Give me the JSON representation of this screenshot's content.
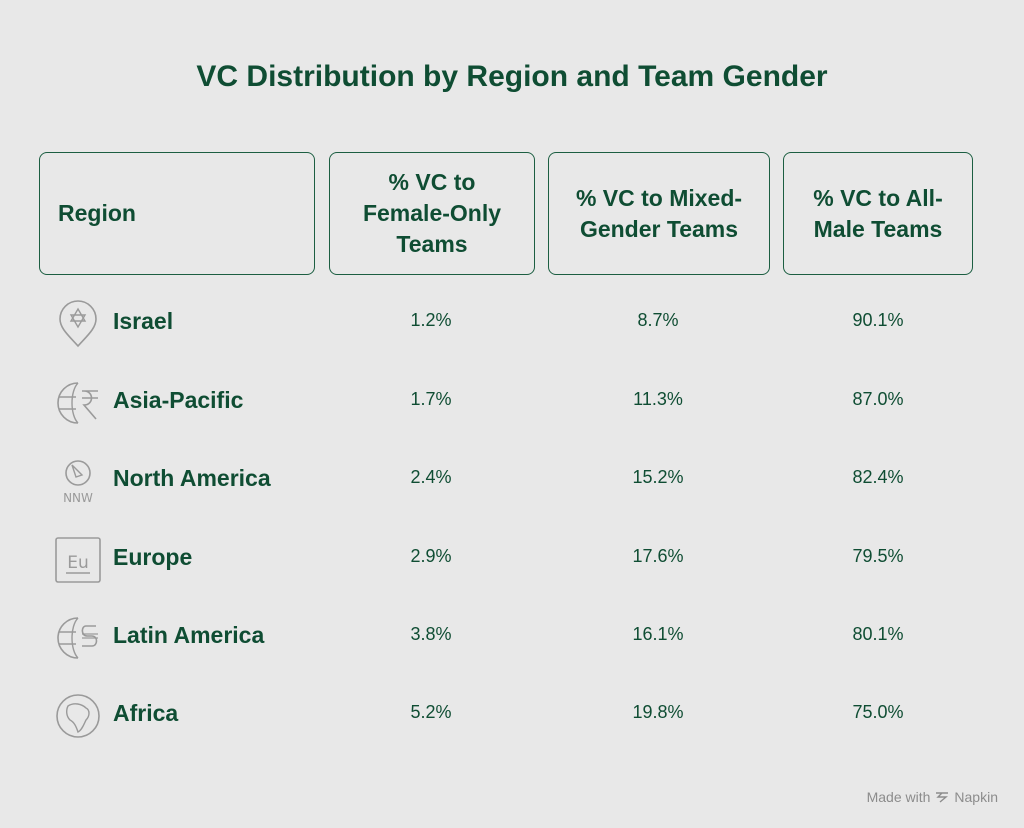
{
  "title": "VC Distribution by Region and Team Gender",
  "headers": {
    "region": "Region",
    "female": "% VC to Female-Only Teams",
    "mixed": "% VC to Mixed-Gender Teams",
    "male": "% VC to All-Male Teams"
  },
  "rows": [
    {
      "region": "Israel",
      "icon": "star-of-david-pin-icon",
      "female": "1.2%",
      "mixed": "8.7%",
      "male": "90.1%"
    },
    {
      "region": "Asia-Pacific",
      "icon": "globe-rupee-icon",
      "female": "1.7%",
      "mixed": "11.3%",
      "male": "87.0%"
    },
    {
      "region": "North America",
      "icon": "compass-nnw-icon",
      "female": "2.4%",
      "mixed": "15.2%",
      "male": "82.4%"
    },
    {
      "region": "Europe",
      "icon": "eu-box-icon",
      "female": "2.9%",
      "mixed": "17.6%",
      "male": "79.5%"
    },
    {
      "region": "Latin America",
      "icon": "globe-peso-icon",
      "female": "3.8%",
      "mixed": "16.1%",
      "male": "80.1%"
    },
    {
      "region": "Africa",
      "icon": "africa-globe-icon",
      "female": "5.2%",
      "mixed": "19.8%",
      "male": "75.0%"
    }
  ],
  "footer": {
    "made_with": "Made with",
    "brand": "Napkin"
  },
  "chart_data": {
    "type": "table",
    "title": "VC Distribution by Region and Team Gender",
    "columns": [
      "Region",
      "% VC to Female-Only Teams",
      "% VC to Mixed-Gender Teams",
      "% VC to All-Male Teams"
    ],
    "rows": [
      [
        "Israel",
        1.2,
        8.7,
        90.1
      ],
      [
        "Asia-Pacific",
        1.7,
        11.3,
        87.0
      ],
      [
        "North America",
        2.4,
        15.2,
        82.4
      ],
      [
        "Europe",
        2.9,
        17.6,
        79.5
      ],
      [
        "Latin America",
        3.8,
        16.1,
        80.1
      ],
      [
        "Africa",
        5.2,
        19.8,
        75.0
      ]
    ]
  },
  "colors": {
    "text": "#0f4d33",
    "border": "#1c5e42",
    "icon": "#9a9a9a",
    "background": "#e8e8e8"
  }
}
